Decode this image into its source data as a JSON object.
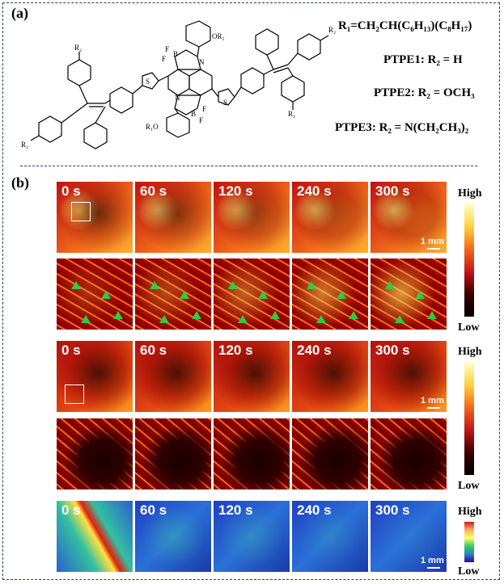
{
  "panel_a": {
    "label": "(a)",
    "r1_formula": "R₁=CH₂CH(C₆H₁₃)(C₈H₁₇)",
    "ptpe1": "PTPE1: R₂ = H",
    "ptpe2": "PTPE2: R₂ = OCH₃",
    "ptpe3": "PTPE3: R₂ = N(CH₂CH₃)₂",
    "atoms": {
      "f": "F",
      "b": "B",
      "n": "N",
      "s": "S",
      "or1": "OR₁",
      "r1o": "R₁O",
      "r2": "R₂"
    }
  },
  "panel_b": {
    "label": "(b)",
    "time_labels": [
      "0 s",
      "60 s",
      "120 s",
      "240 s",
      "300 s"
    ],
    "scale_bar": "1 mm",
    "colorbar_high": "High",
    "colorbar_low": "Low"
  }
}
